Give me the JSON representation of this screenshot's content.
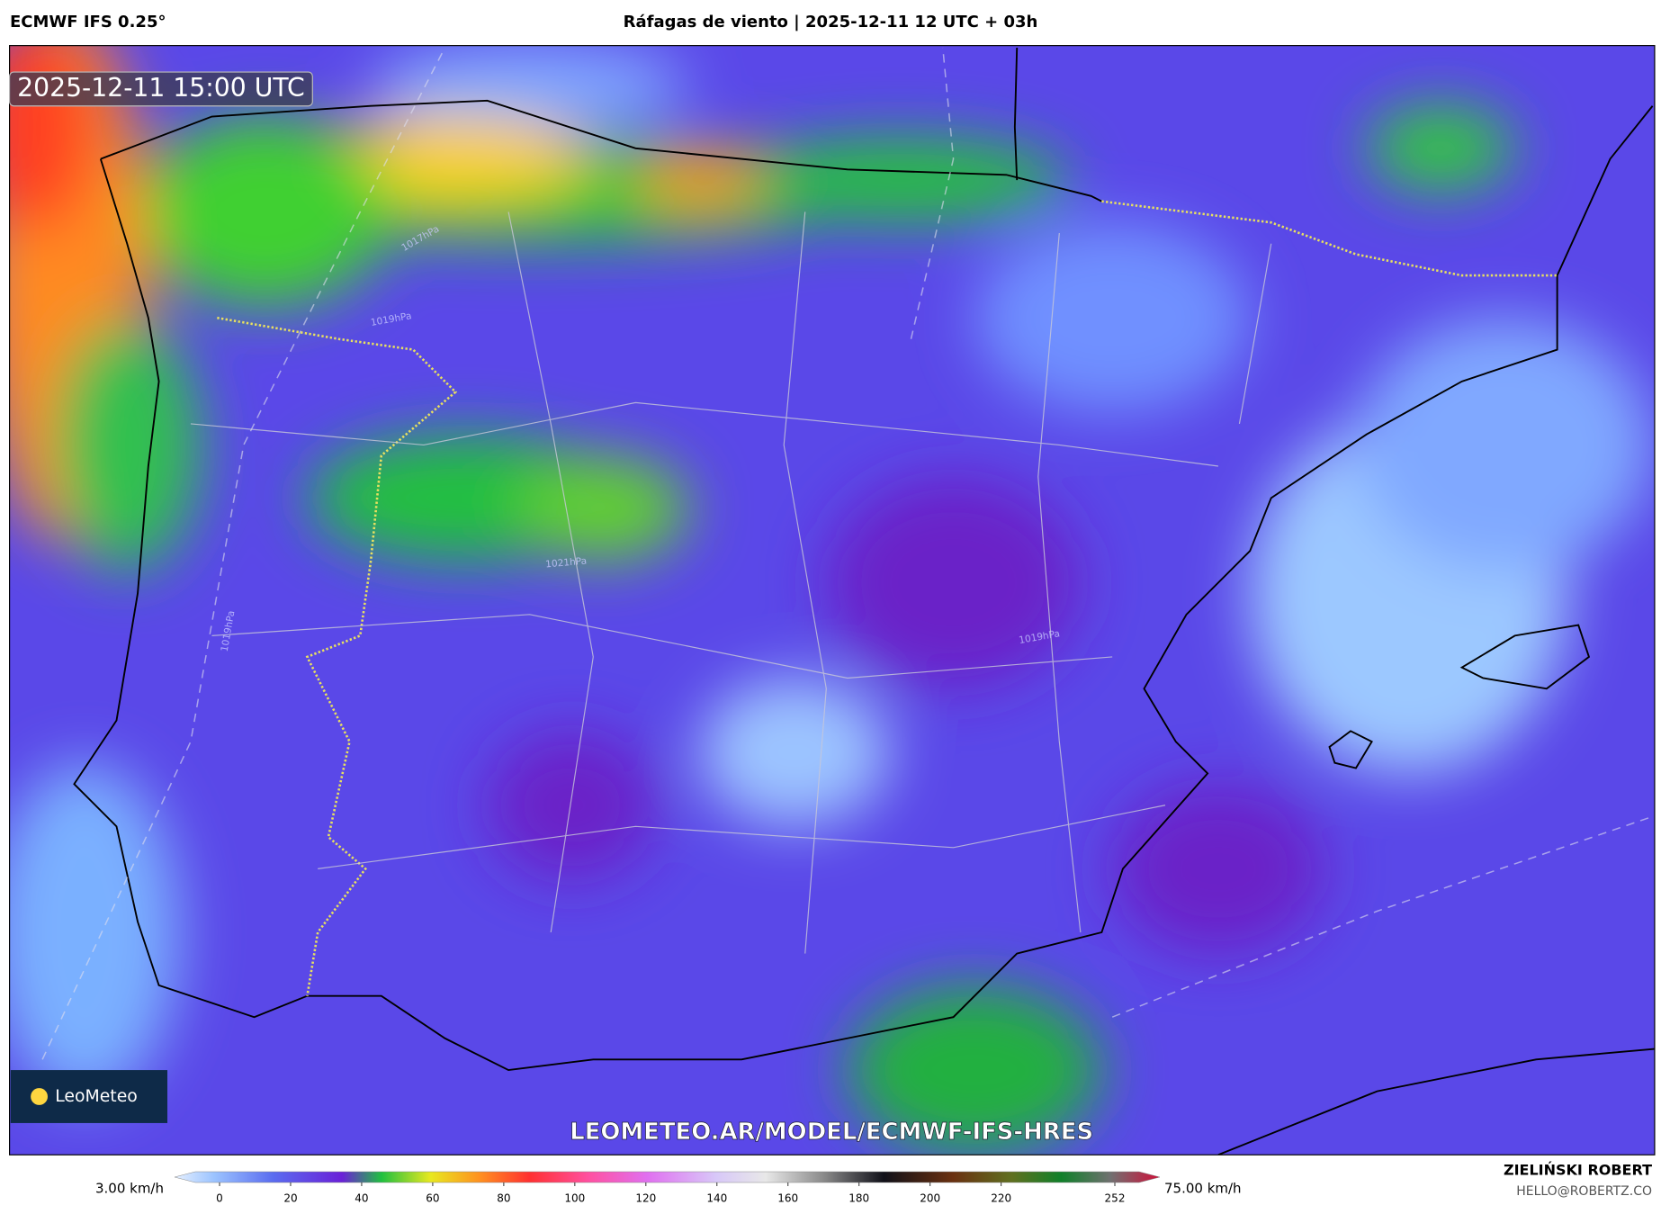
{
  "header": {
    "left": "ECMWF IFS 0.25°",
    "title": "Ráfagas de viento | 2025-12-11 12 UTC + 03h"
  },
  "map": {
    "timestamp": "2025-12-11 15:00 UTC",
    "logo": "LeoMeteo",
    "url": "LEOMETEO.AR/MODEL/ECMWF-IFS-HRES",
    "isobar_labels": [
      "1017hPa",
      "1019hPa",
      "1021hPa",
      "1019hPa",
      "1019hPa"
    ]
  },
  "colorbar": {
    "min_label": "3.00 km/h",
    "max_label": "75.00 km/h",
    "ticks": [
      0,
      20,
      40,
      60,
      80,
      100,
      120,
      140,
      160,
      180,
      200,
      220,
      252
    ]
  },
  "footer": {
    "author": "ZIELIŃSKI ROBERT",
    "email": "HELLO@ROBERTZ.CO"
  }
}
